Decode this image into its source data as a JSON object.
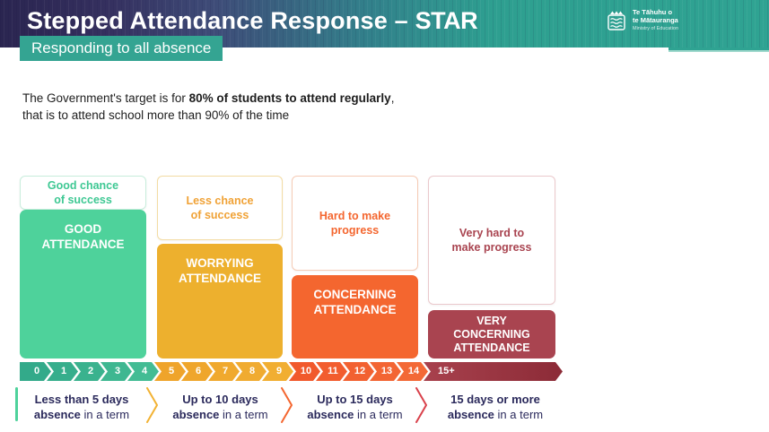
{
  "header": {
    "title_prefix": "Stepped Attendance Response – ",
    "title_star": "STAR",
    "subtitle": "Responding to all absence",
    "gradient_left": "#2A2550",
    "gradient_right": "#2FA392",
    "subtitle_bg": "#34A492",
    "logo": {
      "line1": "Te Tāhuhu o",
      "line2": "te Mātauranga",
      "line3": "Ministry of Education"
    }
  },
  "intro": {
    "line1_pre": "The Government's target is for ",
    "line1_bold": "80% of students to attend regularly",
    "line1_end": ",",
    "line2": "that is to attend school more than 90% of the time"
  },
  "columns": [
    {
      "chance_label": "Good chance\nof success",
      "block_label": "GOOD\nATTENDANCE",
      "block_color": "#4ED29B",
      "label_color": "#3EC893",
      "border_color": "#C8EDDC"
    },
    {
      "chance_label": "Less chance\nof success",
      "block_label": "WORRYING\nATTENDANCE",
      "block_color": "#EDB02E",
      "label_color": "#F0A236",
      "border_color": "#F3DCA3"
    },
    {
      "chance_label": "Hard to make\nprogress",
      "block_label": "CONCERNING\nATTENDANCE",
      "block_color": "#F4662F",
      "label_color": "#F4662F",
      "border_color": "#F6CBB5"
    },
    {
      "chance_label": "Very hard to\nmake progress",
      "block_label": "VERY\nCONCERNING\nATTENDANCE",
      "block_color": "#A94450",
      "label_color": "#A94450",
      "border_color": "#EBC9CC"
    }
  ],
  "scale": {
    "segments": [
      {
        "label": "0",
        "color": "#33AA8A"
      },
      {
        "label": "1",
        "color": "#36AE8C"
      },
      {
        "label": "2",
        "color": "#3AB28E"
      },
      {
        "label": "3",
        "color": "#3EB791"
      },
      {
        "label": "4",
        "color": "#43BC94"
      },
      {
        "label": "5",
        "color": "#EFA42B"
      },
      {
        "label": "6",
        "color": "#EFA62C"
      },
      {
        "label": "7",
        "color": "#F0A92E"
      },
      {
        "label": "8",
        "color": "#F0AB30"
      },
      {
        "label": "9",
        "color": "#F1AE32"
      },
      {
        "label": "10",
        "color": "#F1592C"
      },
      {
        "label": "11",
        "color": "#F25D2E"
      },
      {
        "label": "12",
        "color": "#F26131"
      },
      {
        "label": "13",
        "color": "#F36533"
      },
      {
        "label": "14",
        "color": "#F36936"
      },
      {
        "label": "15+",
        "color": "#A8414D",
        "color2": "#8C2B37"
      }
    ]
  },
  "footer": {
    "text_color": "#2B2A5C",
    "tick_color": "#4ED29B",
    "separator_colors": [
      "#F2B233",
      "#F4662F",
      "#D9414B"
    ],
    "items": [
      {
        "line1": "Less than 5 days",
        "line2_bold": "absence",
        "line2_rest": " in a term"
      },
      {
        "line1": "Up to 10 days",
        "line2_bold": "absence",
        "line2_rest": " in a term"
      },
      {
        "line1": "Up to 15 days",
        "line2_bold": "absence",
        "line2_rest": " in a term"
      },
      {
        "line1": "15 days or more",
        "line2_bold": "absence",
        "line2_rest": " in a term"
      }
    ]
  }
}
